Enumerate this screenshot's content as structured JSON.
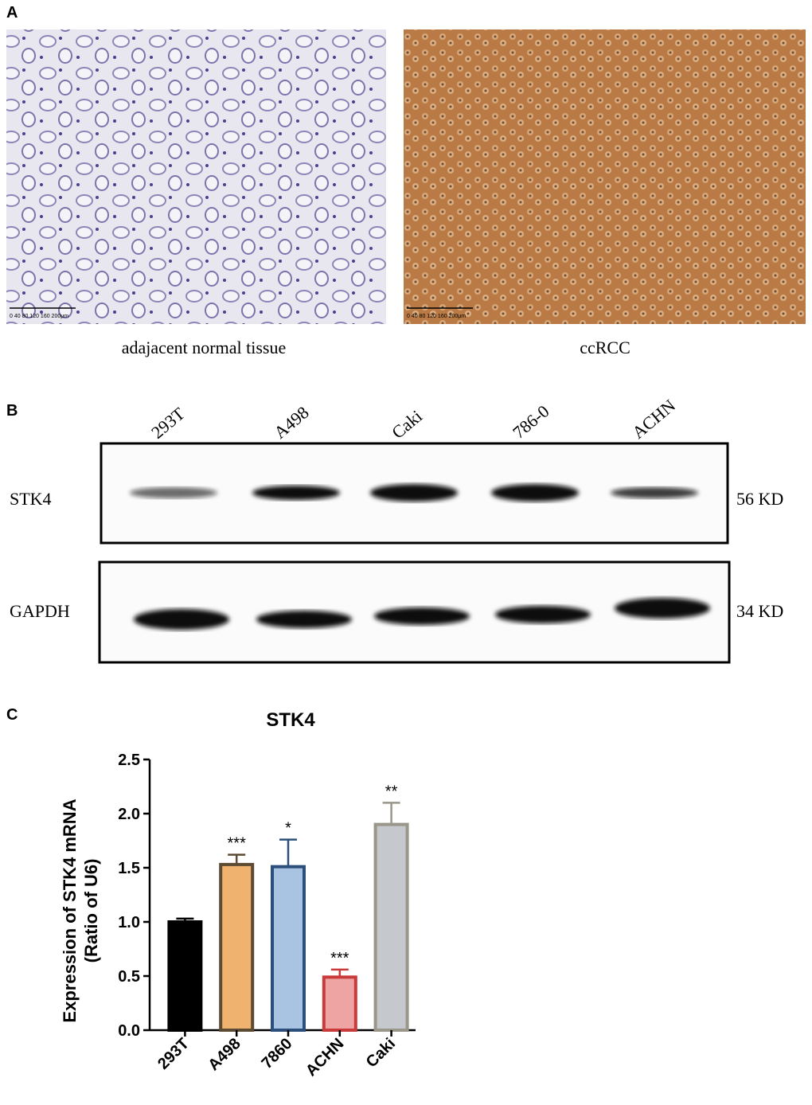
{
  "panels": {
    "A": {
      "label": "A",
      "images": [
        {
          "caption": "adajacent normal tissue",
          "scale_label": "0  40  80  120 160 200μm"
        },
        {
          "caption": "ccRCC",
          "scale_label": "0  40  80  120 160 200μm"
        }
      ]
    },
    "B": {
      "label": "B",
      "lanes": [
        "293T",
        "A498",
        "Caki",
        "786-0",
        "ACHN"
      ],
      "blots": [
        {
          "protein": "STK4",
          "size": "56 KD"
        },
        {
          "protein": "GAPDH",
          "size": "34 KD"
        }
      ]
    }
  },
  "chart_data": {
    "panel_label": "C",
    "type": "bar",
    "title": "STK4",
    "y_label": [
      "Expression of STK4 mRNA",
      "(Ratio of U6)"
    ],
    "categories": [
      "293T",
      "A498",
      "7860",
      "ACHN",
      "Caki"
    ],
    "values": [
      1.0,
      1.53,
      1.51,
      0.49,
      1.9
    ],
    "errors": [
      0.03,
      0.09,
      0.25,
      0.07,
      0.2
    ],
    "significance": [
      null,
      "***",
      "*",
      "***",
      "**"
    ],
    "colors": [
      "#000000",
      "#f0b26f",
      "#a9c3e3",
      "#eea4a2",
      "#c5c9cd"
    ],
    "edge_colors": [
      "#000000",
      "#5c4a33",
      "#2b4f7a",
      "#c93a3a",
      "#9a968a"
    ],
    "ylim": [
      0,
      2.5
    ],
    "yticks": [
      {
        "value": 0,
        "label": "0.0"
      },
      0.5,
      {
        "value": 1,
        "label": "1.0"
      },
      1.5,
      {
        "value": 2,
        "label": "2.0"
      },
      2.5
    ]
  }
}
